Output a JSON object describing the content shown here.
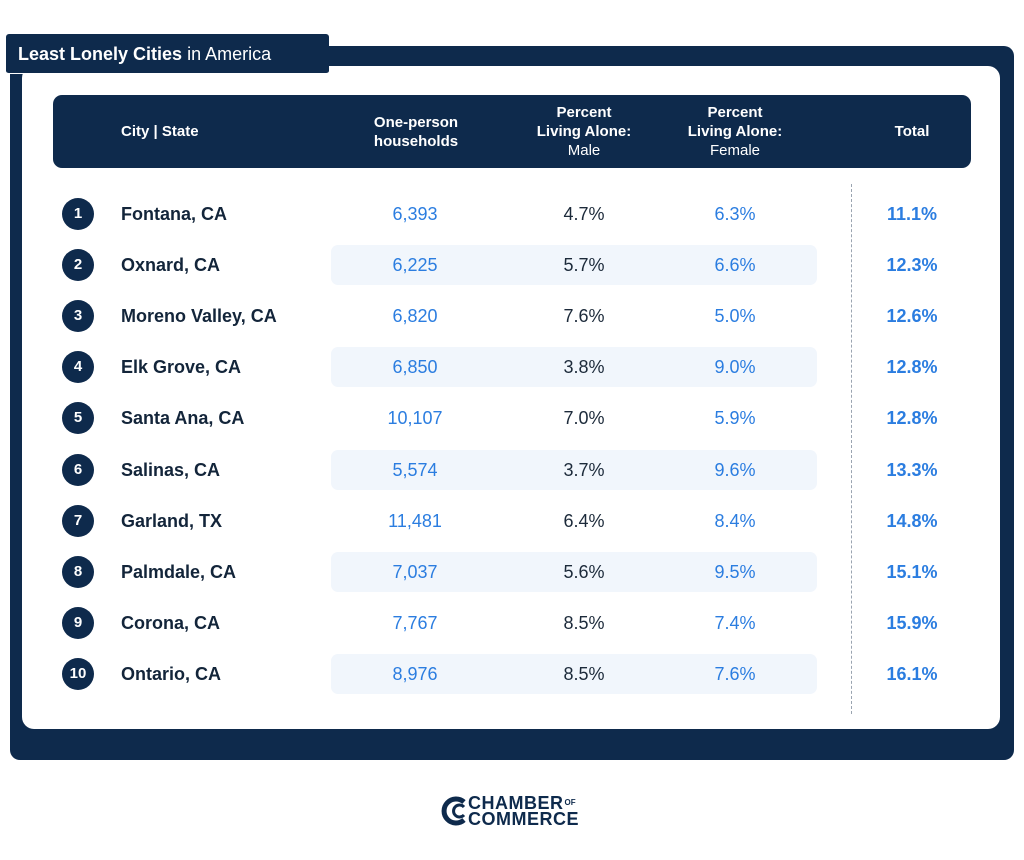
{
  "title": {
    "bold": "Least Lonely Cities",
    "rest": " in America"
  },
  "headers": {
    "city": "City | State",
    "households_l1": "One-person",
    "households_l2": "households",
    "male_l1": "Percent",
    "male_l2": "Living Alone:",
    "male_l3": "Male",
    "female_l1": "Percent",
    "female_l2": "Living Alone:",
    "female_l3": "Female",
    "total": "Total"
  },
  "rows": [
    {
      "rank": "1",
      "city": "Fontana, CA",
      "households": "6,393",
      "male": "4.7%",
      "female": "6.3%",
      "total": "11.1%"
    },
    {
      "rank": "2",
      "city": "Oxnard, CA",
      "households": "6,225",
      "male": "5.7%",
      "female": "6.6%",
      "total": "12.3%"
    },
    {
      "rank": "3",
      "city": "Moreno Valley, CA",
      "households": "6,820",
      "male": "7.6%",
      "female": "5.0%",
      "total": "12.6%"
    },
    {
      "rank": "4",
      "city": "Elk Grove, CA",
      "households": "6,850",
      "male": "3.8%",
      "female": "9.0%",
      "total": "12.8%"
    },
    {
      "rank": "5",
      "city": "Santa Ana, CA",
      "households": "10,107",
      "male": "7.0%",
      "female": "5.9%",
      "total": "12.8%"
    },
    {
      "rank": "6",
      "city": "Salinas, CA",
      "households": "5,574",
      "male": "3.7%",
      "female": "9.6%",
      "total": "13.3%"
    },
    {
      "rank": "7",
      "city": "Garland, TX",
      "households": "11,481",
      "male": "6.4%",
      "female": "8.4%",
      "total": "14.8%"
    },
    {
      "rank": "8",
      "city": "Palmdale, CA",
      "households": "7,037",
      "male": "5.6%",
      "female": "9.5%",
      "total": "15.1%"
    },
    {
      "rank": "9",
      "city": "Corona, CA",
      "households": "7,767",
      "male": "8.5%",
      "female": "7.4%",
      "total": "15.9%"
    },
    {
      "rank": "10",
      "city": "Ontario, CA",
      "households": "8,976",
      "male": "8.5%",
      "female": "7.6%",
      "total": "16.1%"
    }
  ],
  "logo": {
    "line1": "CHAMBER",
    "of": "OF",
    "line2": "COMMERCE",
    "icon": "chamber-c-icon"
  },
  "colors": {
    "navy": "#0e2a4c",
    "blue": "#2b7de0",
    "stripe": "#f1f6fc",
    "text": "#13253a"
  },
  "chart_data": {
    "type": "table",
    "title": "Least Lonely Cities in America",
    "columns": [
      "City | State",
      "One-person households",
      "Percent Living Alone: Male",
      "Percent Living Alone: Female",
      "Total"
    ],
    "rows": [
      [
        "Fontana, CA",
        6393,
        4.7,
        6.3,
        11.1
      ],
      [
        "Oxnard, CA",
        6225,
        5.7,
        6.6,
        12.3
      ],
      [
        "Moreno Valley, CA",
        6820,
        7.6,
        5.0,
        12.6
      ],
      [
        "Elk Grove, CA",
        6850,
        3.8,
        9.0,
        12.8
      ],
      [
        "Santa Ana, CA",
        10107,
        7.0,
        5.9,
        12.8
      ],
      [
        "Salinas, CA",
        5574,
        3.7,
        9.6,
        13.3
      ],
      [
        "Garland, TX",
        11481,
        6.4,
        8.4,
        14.8
      ],
      [
        "Palmdale, CA",
        7037,
        5.6,
        9.5,
        15.1
      ],
      [
        "Corona, CA",
        7767,
        8.5,
        7.4,
        15.9
      ],
      [
        "Ontario, CA",
        8976,
        8.5,
        7.6,
        16.1
      ]
    ]
  }
}
